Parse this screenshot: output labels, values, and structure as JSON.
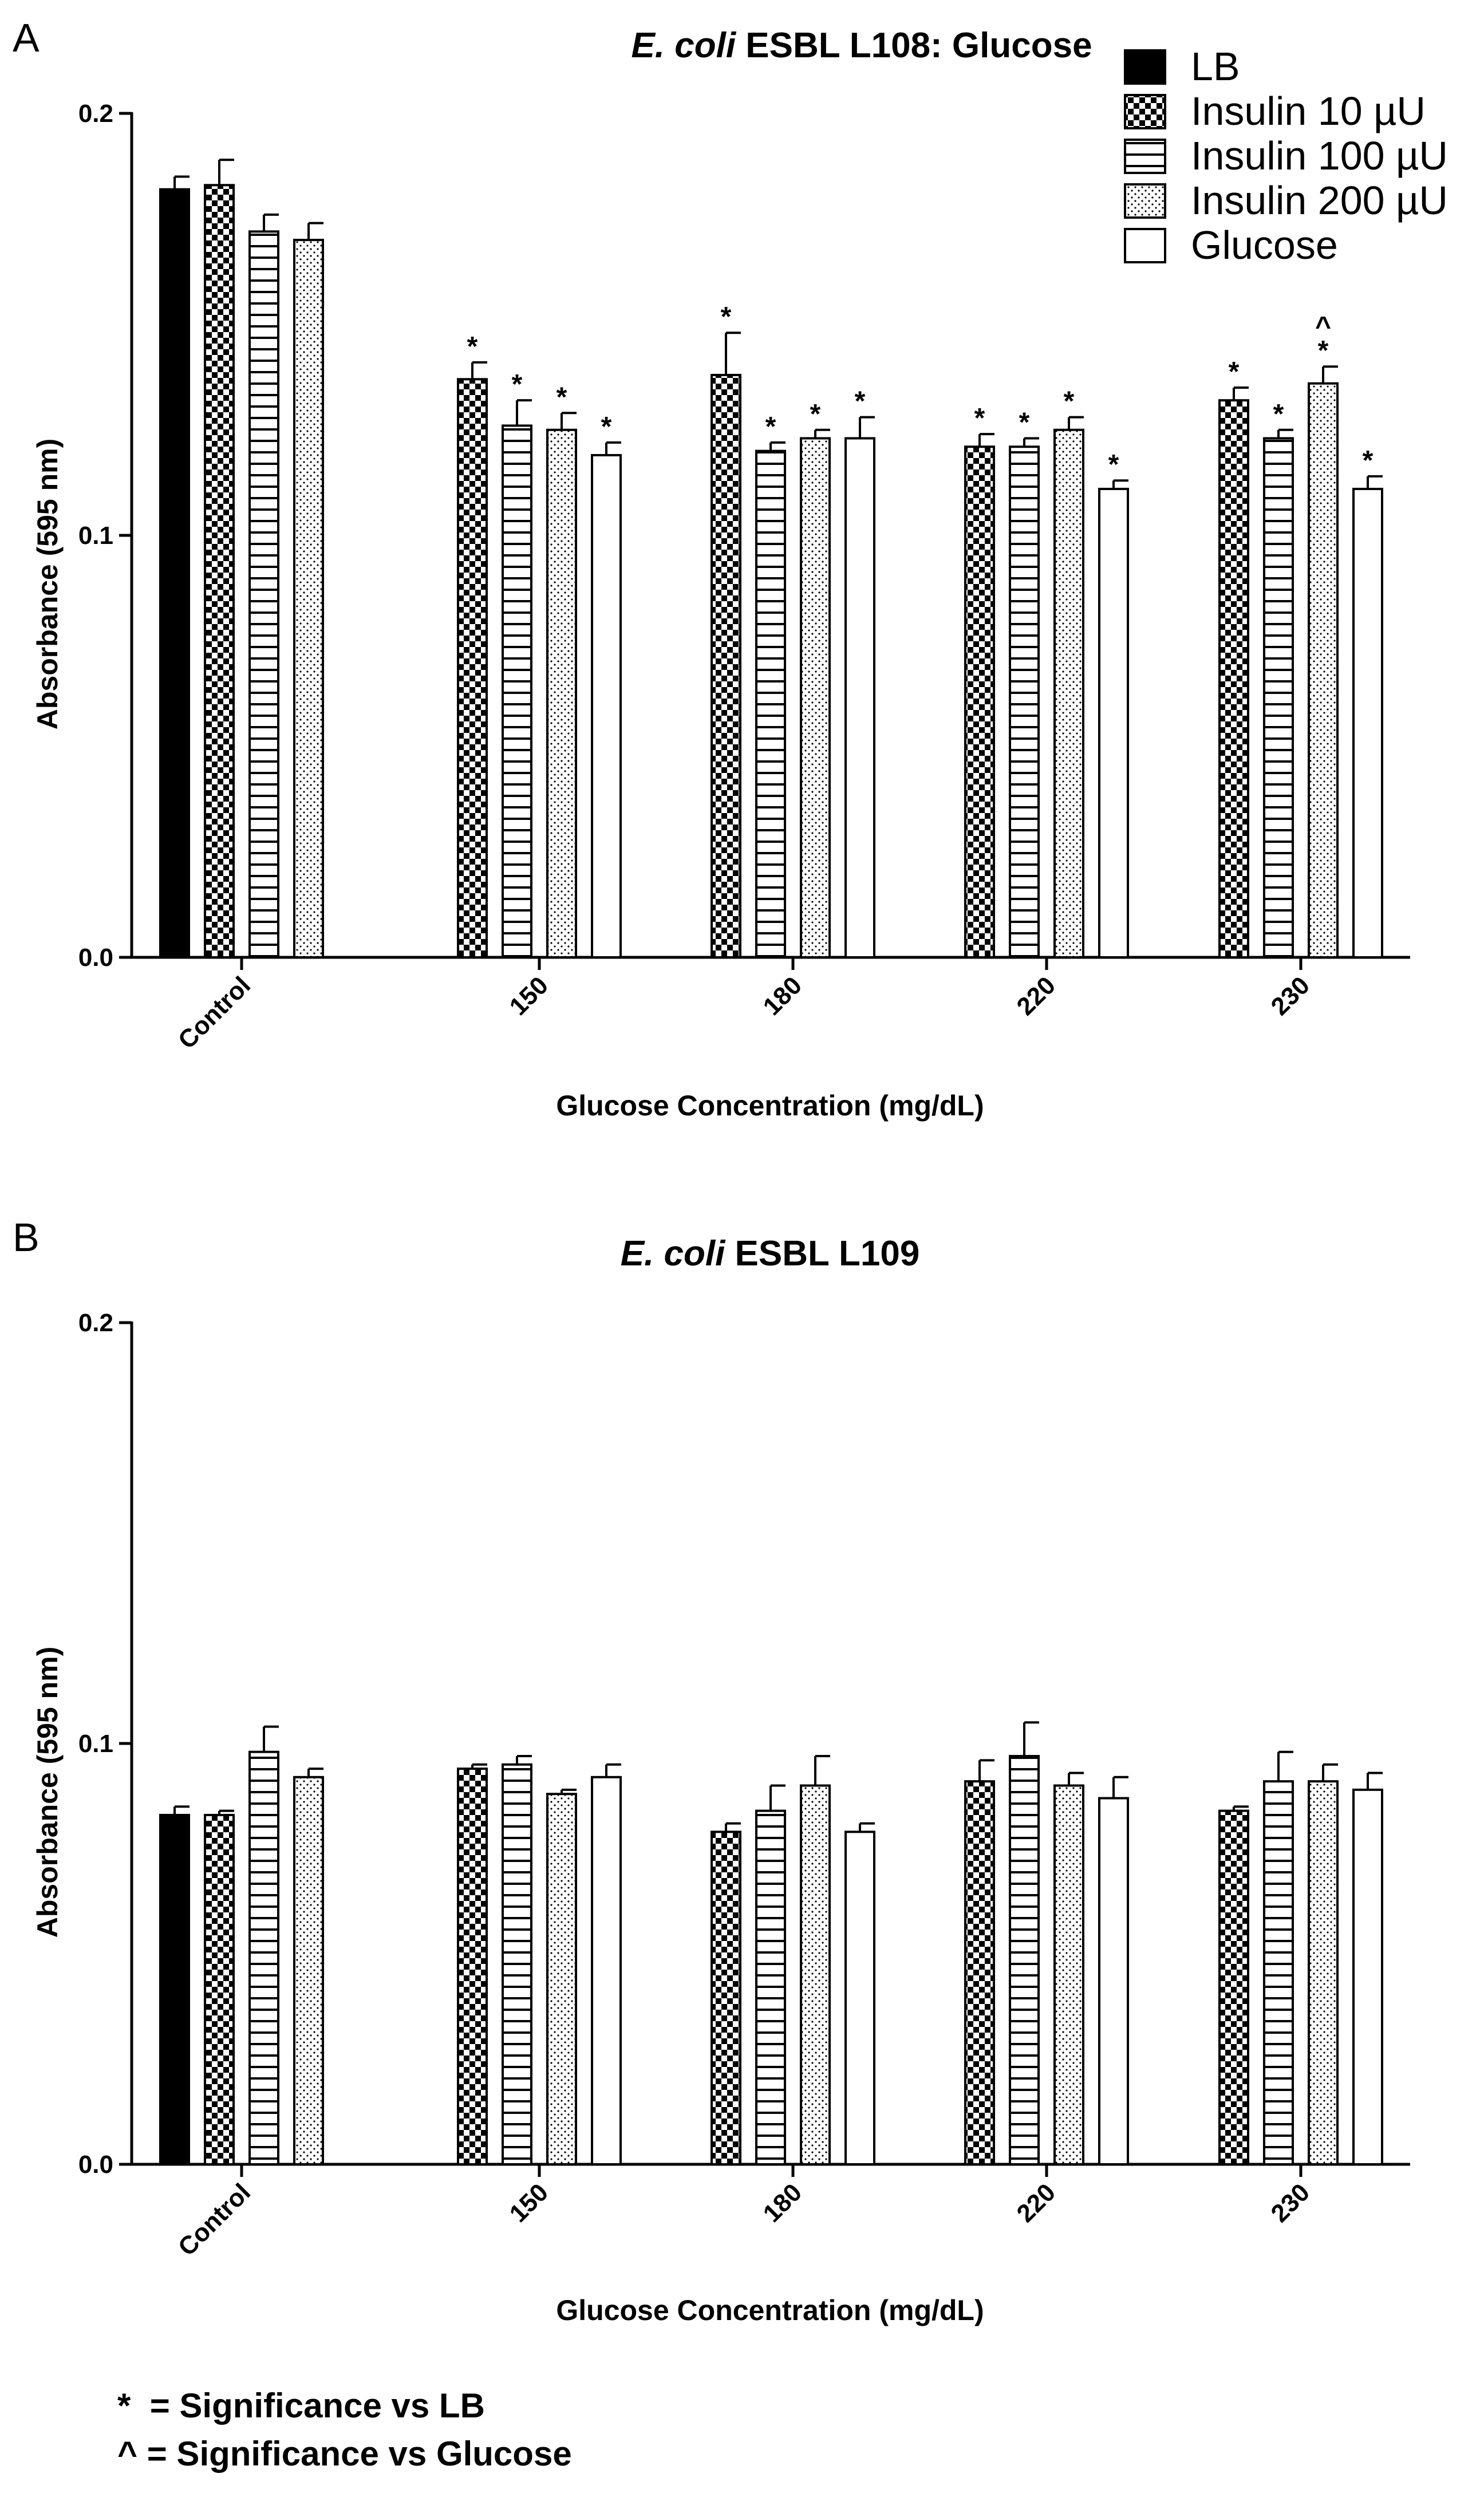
{
  "panels": [
    {
      "letter": "A",
      "title_italic": "E. coli",
      "title_rest": " ESBL L108: Glucose"
    },
    {
      "letter": "B",
      "title_italic": "E. coli",
      "title_rest": " ESBL L109"
    }
  ],
  "legend": [
    {
      "label": "LB",
      "pattern": "solid"
    },
    {
      "label": "Insulin 10 µU",
      "pattern": "checker"
    },
    {
      "label": "Insulin 100 µU",
      "pattern": "hlines"
    },
    {
      "label": "Insulin 200 µU",
      "pattern": "dots"
    },
    {
      "label": "Glucose",
      "pattern": "white"
    }
  ],
  "footnotes": [
    {
      "symbol": "*",
      "text": "  = Significance vs LB"
    },
    {
      "symbol": "^",
      "text": " = Significance vs Glucose"
    }
  ],
  "colors": {
    "ink": "#000000",
    "background": "#ffffff"
  },
  "chart_data": [
    {
      "type": "bar",
      "title": "E. coli ESBL L108: Glucose",
      "xlabel": "Glucose Concentration (mg/dL)",
      "ylabel": "Absorbance (595 nm)",
      "ylim": [
        0,
        0.2
      ],
      "yticks": [
        0.0,
        0.1,
        0.2
      ],
      "ytick_labels": [
        "0.0",
        "0.1",
        "0.2"
      ],
      "categories": [
        "Control",
        "150",
        "180",
        "220",
        "230"
      ],
      "series": [
        {
          "name": "LB",
          "values": [
            0.182,
            null,
            null,
            null,
            null
          ],
          "errors": [
            0.003,
            null,
            null,
            null,
            null
          ]
        },
        {
          "name": "Insulin 10 µU",
          "values": [
            0.183,
            0.137,
            0.138,
            0.121,
            0.132
          ],
          "errors": [
            0.006,
            0.004,
            0.01,
            0.003,
            0.003
          ],
          "significance": [
            "",
            "*",
            "*",
            "*",
            "*"
          ]
        },
        {
          "name": "Insulin 100 µU",
          "values": [
            0.172,
            0.126,
            0.12,
            0.121,
            0.123
          ],
          "errors": [
            0.004,
            0.006,
            0.002,
            0.002,
            0.002
          ],
          "significance": [
            "",
            "*",
            "*",
            "*",
            "*"
          ]
        },
        {
          "name": "Insulin 200 µU",
          "values": [
            0.17,
            0.125,
            0.123,
            0.125,
            0.136
          ],
          "errors": [
            0.004,
            0.004,
            0.002,
            0.003,
            0.004
          ],
          "significance": [
            "",
            "*",
            "*",
            "*",
            "^\n*"
          ]
        },
        {
          "name": "Glucose",
          "values": [
            null,
            0.119,
            0.123,
            0.111,
            0.111
          ],
          "errors": [
            null,
            0.003,
            0.005,
            0.002,
            0.003
          ],
          "significance": [
            "",
            "*",
            "*",
            "*",
            "*"
          ]
        }
      ]
    },
    {
      "type": "bar",
      "title": "E. coli ESBL L109",
      "xlabel": "Glucose Concentration (mg/dL)",
      "ylabel": "Absorbance (595 nm)",
      "ylim": [
        0,
        0.2
      ],
      "yticks": [
        0.0,
        0.1,
        0.2
      ],
      "ytick_labels": [
        "0.0",
        "0.1",
        "0.2"
      ],
      "categories": [
        "Control",
        "150",
        "180",
        "220",
        "230"
      ],
      "series": [
        {
          "name": "LB",
          "values": [
            0.083,
            null,
            null,
            null,
            null
          ],
          "errors": [
            0.002,
            null,
            null,
            null,
            null
          ]
        },
        {
          "name": "Insulin 10 µU",
          "values": [
            0.083,
            0.094,
            0.079,
            0.091,
            0.084
          ],
          "errors": [
            0.001,
            0.001,
            0.002,
            0.005,
            0.001
          ]
        },
        {
          "name": "Insulin 100 µU",
          "values": [
            0.098,
            0.095,
            0.084,
            0.097,
            0.091
          ],
          "errors": [
            0.006,
            0.002,
            0.006,
            0.008,
            0.007
          ]
        },
        {
          "name": "Insulin 200 µU",
          "values": [
            0.092,
            0.088,
            0.09,
            0.09,
            0.091
          ],
          "errors": [
            0.002,
            0.001,
            0.007,
            0.003,
            0.004
          ]
        },
        {
          "name": "Glucose",
          "values": [
            null,
            0.092,
            0.079,
            0.087,
            0.089
          ],
          "errors": [
            null,
            0.003,
            0.002,
            0.005,
            0.004
          ]
        }
      ]
    }
  ]
}
